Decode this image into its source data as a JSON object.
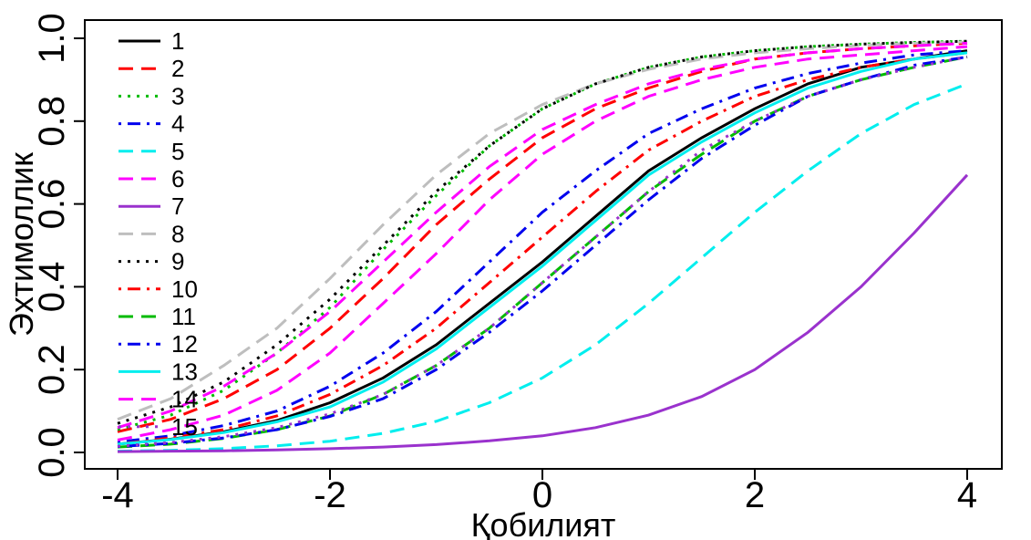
{
  "chart_data": {
    "type": "line",
    "title": "",
    "xlabel": "Қобилият",
    "ylabel": "Эхтимоллик",
    "xlim": [
      -4,
      4
    ],
    "ylim": [
      0,
      1
    ],
    "xticks": [
      "-4",
      "-2",
      "0",
      "2",
      "4"
    ],
    "yticks": [
      "0.0",
      "0.2",
      "0.4",
      "0.6",
      "0.8",
      "1.0"
    ],
    "grid": false,
    "legend_position": "top-left",
    "x": [
      -4,
      -3.5,
      -3,
      -2.5,
      -2,
      -1.5,
      -1,
      -0.5,
      0,
      0.5,
      1,
      1.5,
      2,
      2.5,
      3,
      3.5,
      4
    ],
    "series": [
      {
        "name": "1",
        "color": "#000000",
        "dash": "solid",
        "values": [
          0.02,
          0.032,
          0.05,
          0.077,
          0.12,
          0.18,
          0.26,
          0.36,
          0.46,
          0.57,
          0.68,
          0.76,
          0.83,
          0.89,
          0.93,
          0.95,
          0.97
        ]
      },
      {
        "name": "2",
        "color": "#ff0000",
        "dash": "dashed",
        "values": [
          0.05,
          0.08,
          0.13,
          0.2,
          0.3,
          0.42,
          0.55,
          0.66,
          0.76,
          0.83,
          0.88,
          0.92,
          0.95,
          0.965,
          0.975,
          0.982,
          0.988
        ]
      },
      {
        "name": "3",
        "color": "#00bb00",
        "dash": "dotted",
        "values": [
          0.055,
          0.09,
          0.15,
          0.24,
          0.35,
          0.49,
          0.62,
          0.74,
          0.83,
          0.89,
          0.93,
          0.955,
          0.97,
          0.98,
          0.986,
          0.99,
          0.993
        ]
      },
      {
        "name": "4",
        "color": "#0000ee",
        "dash": "dotdash",
        "values": [
          0.025,
          0.04,
          0.065,
          0.1,
          0.16,
          0.24,
          0.34,
          0.46,
          0.58,
          0.68,
          0.77,
          0.83,
          0.88,
          0.915,
          0.94,
          0.96,
          0.97
        ]
      },
      {
        "name": "5",
        "color": "#00eeee",
        "dash": "dashed",
        "values": [
          0.003,
          0.005,
          0.009,
          0.016,
          0.027,
          0.046,
          0.075,
          0.12,
          0.18,
          0.26,
          0.36,
          0.47,
          0.58,
          0.68,
          0.77,
          0.84,
          0.89
        ]
      },
      {
        "name": "6",
        "color": "#ff00ff",
        "dash": "dashed",
        "values": [
          0.03,
          0.055,
          0.09,
          0.15,
          0.24,
          0.36,
          0.48,
          0.61,
          0.72,
          0.8,
          0.86,
          0.9,
          0.93,
          0.95,
          0.96,
          0.97,
          0.98
        ]
      },
      {
        "name": "7",
        "color": "#9a32cd",
        "dash": "solid",
        "values": [
          0.002,
          0.003,
          0.004,
          0.006,
          0.009,
          0.013,
          0.019,
          0.028,
          0.04,
          0.06,
          0.09,
          0.135,
          0.2,
          0.29,
          0.4,
          0.53,
          0.67
        ]
      },
      {
        "name": "8",
        "color": "#bebebe",
        "dash": "dashed",
        "values": [
          0.08,
          0.13,
          0.21,
          0.3,
          0.42,
          0.55,
          0.67,
          0.77,
          0.84,
          0.89,
          0.925,
          0.95,
          0.965,
          0.975,
          0.983,
          0.988,
          0.991
        ]
      },
      {
        "name": "9",
        "color": "#000000",
        "dash": "dotted",
        "values": [
          0.07,
          0.11,
          0.17,
          0.26,
          0.37,
          0.5,
          0.63,
          0.74,
          0.83,
          0.89,
          0.93,
          0.955,
          0.97,
          0.98,
          0.986,
          0.99,
          0.993
        ]
      },
      {
        "name": "10",
        "color": "#ff0000",
        "dash": "dotdash",
        "values": [
          0.02,
          0.035,
          0.055,
          0.088,
          0.14,
          0.21,
          0.3,
          0.41,
          0.52,
          0.63,
          0.73,
          0.8,
          0.86,
          0.9,
          0.93,
          0.95,
          0.965
        ]
      },
      {
        "name": "11",
        "color": "#00bb00",
        "dash": "dashed",
        "values": [
          0.013,
          0.02,
          0.034,
          0.055,
          0.088,
          0.14,
          0.21,
          0.3,
          0.41,
          0.52,
          0.63,
          0.72,
          0.8,
          0.86,
          0.9,
          0.93,
          0.955
        ]
      },
      {
        "name": "12",
        "color": "#0000ee",
        "dash": "dotdash",
        "values": [
          0.014,
          0.022,
          0.035,
          0.055,
          0.087,
          0.13,
          0.2,
          0.29,
          0.39,
          0.5,
          0.61,
          0.71,
          0.79,
          0.86,
          0.9,
          0.935,
          0.955
        ]
      },
      {
        "name": "13",
        "color": "#00eeee",
        "dash": "solid",
        "values": [
          0.02,
          0.031,
          0.048,
          0.074,
          0.11,
          0.17,
          0.25,
          0.35,
          0.45,
          0.56,
          0.67,
          0.75,
          0.82,
          0.88,
          0.92,
          0.95,
          0.965
        ]
      },
      {
        "name": "14",
        "color": "#ff00ff",
        "dash": "dashed",
        "values": [
          0.06,
          0.1,
          0.16,
          0.24,
          0.34,
          0.46,
          0.58,
          0.69,
          0.78,
          0.84,
          0.89,
          0.925,
          0.95,
          0.965,
          0.975,
          0.982,
          0.988
        ]
      },
      {
        "name": "15",
        "color": "#9a32cd",
        "dash": "dotted",
        "values": [
          0.015,
          0.024,
          0.038,
          0.06,
          0.093,
          0.14,
          0.21,
          0.3,
          0.41,
          0.52,
          0.63,
          0.73,
          0.8,
          0.86,
          0.9,
          0.93,
          0.955
        ]
      }
    ]
  }
}
